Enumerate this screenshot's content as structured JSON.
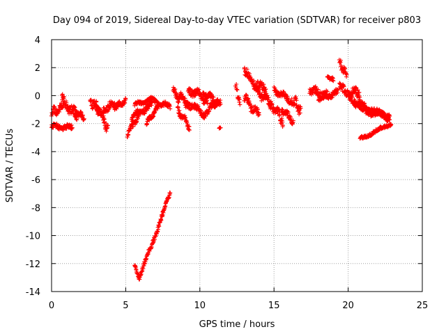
{
  "chart_data": {
    "type": "scatter",
    "title": "Day 094 of 2019, Sidereal Day-to-day VTEC variation (SDTVAR) for receiver p803",
    "xlabel": "GPS time / hours",
    "ylabel": "SDTVAR / TECUs",
    "xlim": [
      0,
      25
    ],
    "ylim": [
      -14,
      4
    ],
    "xticks": [
      0,
      5,
      10,
      15,
      20,
      25
    ],
    "yticks": [
      -14,
      -12,
      -10,
      -8,
      -6,
      -4,
      -2,
      0,
      2,
      4
    ],
    "grid": true,
    "marker": "plus",
    "color": "#ff0000",
    "series": [
      {
        "name": "SDTVAR",
        "segments": [
          {
            "x0": 0.0,
            "x1": 0.8,
            "y0": -1.2,
            "y1": -0.8,
            "spread": 0.5
          },
          {
            "x0": 0.0,
            "x1": 1.4,
            "y0": -2.2,
            "y1": -2.3,
            "spread": 0.3
          },
          {
            "x0": 0.7,
            "x1": 1.7,
            "y0": -0.3,
            "y1": -1.5,
            "spread": 0.6
          },
          {
            "x0": 1.5,
            "x1": 2.2,
            "y0": -1.0,
            "y1": -1.6,
            "spread": 0.4
          },
          {
            "x0": 2.6,
            "x1": 3.2,
            "y0": -0.3,
            "y1": -1.0,
            "spread": 0.6
          },
          {
            "x0": 3.0,
            "x1": 3.8,
            "y0": -0.6,
            "y1": -2.3,
            "spread": 0.6
          },
          {
            "x0": 3.5,
            "x1": 4.6,
            "y0": -1.0,
            "y1": -0.5,
            "spread": 0.5
          },
          {
            "x0": 4.2,
            "x1": 5.0,
            "y0": -0.8,
            "y1": -0.4,
            "spread": 0.3
          },
          {
            "x0": 5.1,
            "x1": 6.0,
            "y0": -2.8,
            "y1": -1.2,
            "spread": 0.3
          },
          {
            "x0": 5.4,
            "x1": 6.8,
            "y0": -1.6,
            "y1": -0.6,
            "spread": 0.4
          },
          {
            "x0": 5.6,
            "x1": 6.6,
            "y0": -0.6,
            "y1": -0.4,
            "spread": 0.2
          },
          {
            "x0": 6.4,
            "x1": 7.2,
            "y0": -2.0,
            "y1": -0.8,
            "spread": 0.3
          },
          {
            "x0": 6.6,
            "x1": 8.0,
            "y0": -0.3,
            "y1": -0.8,
            "spread": 0.3
          },
          {
            "x0": 5.6,
            "x1": 5.9,
            "y0": -12.1,
            "y1": -13.1,
            "spread": 0.15
          },
          {
            "x0": 5.9,
            "x1": 8.0,
            "y0": -13.1,
            "y1": -7.0,
            "spread": 0.3
          },
          {
            "x0": 8.2,
            "x1": 9.2,
            "y0": 0.3,
            "y1": -0.6,
            "spread": 0.6
          },
          {
            "x0": 8.5,
            "x1": 9.3,
            "y0": -1.0,
            "y1": -2.2,
            "spread": 0.4
          },
          {
            "x0": 9.2,
            "x1": 10.5,
            "y0": 0.5,
            "y1": -0.3,
            "spread": 0.5
          },
          {
            "x0": 9.0,
            "x1": 10.4,
            "y0": -0.4,
            "y1": -1.4,
            "spread": 0.4
          },
          {
            "x0": 10.2,
            "x1": 11.4,
            "y0": 0.2,
            "y1": -0.6,
            "spread": 0.4
          },
          {
            "x0": 10.4,
            "x1": 11.2,
            "y0": -1.2,
            "y1": -0.4,
            "spread": 0.4
          },
          {
            "x0": 11.3,
            "x1": 11.4,
            "y0": -2.3,
            "y1": -2.3,
            "spread": 0.05
          },
          {
            "x0": 12.4,
            "x1": 12.7,
            "y0": 0.8,
            "y1": -0.6,
            "spread": 0.5
          },
          {
            "x0": 13.0,
            "x1": 14.5,
            "y0": 1.6,
            "y1": 0.2,
            "spread": 0.6
          },
          {
            "x0": 13.0,
            "x1": 14.0,
            "y0": -0.2,
            "y1": -1.4,
            "spread": 0.5
          },
          {
            "x0": 13.8,
            "x1": 14.8,
            "y0": 0.4,
            "y1": -0.6,
            "spread": 0.5
          },
          {
            "x0": 14.8,
            "x1": 15.6,
            "y0": -0.6,
            "y1": -1.8,
            "spread": 0.6
          },
          {
            "x0": 15.0,
            "x1": 16.2,
            "y0": 0.4,
            "y1": -0.4,
            "spread": 0.4
          },
          {
            "x0": 15.5,
            "x1": 16.3,
            "y0": -1.0,
            "y1": -1.8,
            "spread": 0.4
          },
          {
            "x0": 16.2,
            "x1": 16.8,
            "y0": -0.2,
            "y1": -1.0,
            "spread": 0.6
          },
          {
            "x0": 17.4,
            "x1": 18.6,
            "y0": 0.4,
            "y1": 0.0,
            "spread": 0.5
          },
          {
            "x0": 18.0,
            "x1": 19.3,
            "y0": -0.2,
            "y1": 0.2,
            "spread": 0.4
          },
          {
            "x0": 18.6,
            "x1": 19.0,
            "y0": 1.4,
            "y1": 1.1,
            "spread": 0.2
          },
          {
            "x0": 19.4,
            "x1": 19.9,
            "y0": 2.3,
            "y1": 1.6,
            "spread": 0.5
          },
          {
            "x0": 19.4,
            "x1": 20.8,
            "y0": 0.5,
            "y1": 0.0,
            "spread": 0.6
          },
          {
            "x0": 20.0,
            "x1": 21.4,
            "y0": -0.2,
            "y1": -1.0,
            "spread": 0.4
          },
          {
            "x0": 20.4,
            "x1": 22.8,
            "y0": -0.6,
            "y1": -1.6,
            "spread": 0.4
          },
          {
            "x0": 21.2,
            "x1": 22.8,
            "y0": -1.2,
            "y1": -1.4,
            "spread": 0.3
          },
          {
            "x0": 20.8,
            "x1": 22.9,
            "y0": -3.1,
            "y1": -2.0,
            "spread": 0.2
          }
        ]
      }
    ]
  }
}
